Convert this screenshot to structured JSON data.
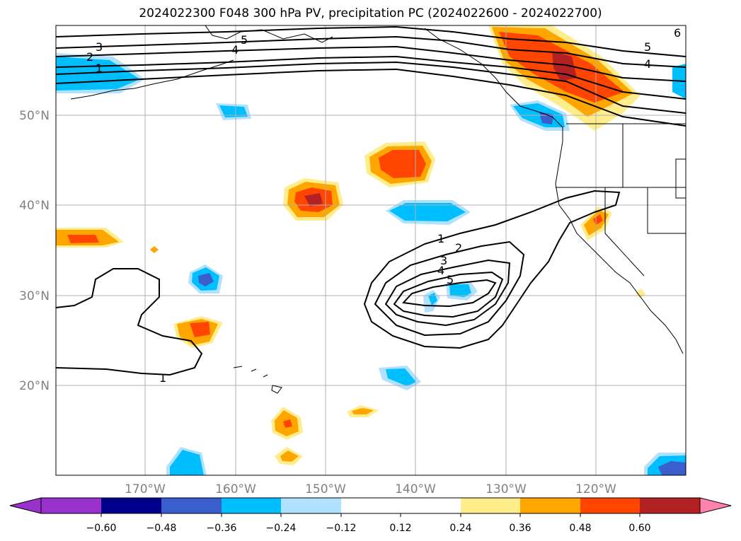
{
  "title": "2024022300 F048 300 hPa PV, precipitation PC (2024022600 - 2024022700)",
  "map": {
    "lat_labels": [
      "50°N",
      "40°N",
      "30°N",
      "20°N"
    ],
    "lon_labels": [
      "170°W",
      "160°W",
      "150°W",
      "140°W",
      "130°W",
      "120°W"
    ],
    "contour_labels": [
      "1",
      "2",
      "3",
      "4",
      "5",
      "6"
    ]
  },
  "colorbar": {
    "labels": [
      "−0.60",
      "−0.48",
      "−0.36",
      "−0.24",
      "−0.12",
      "0.12",
      "0.24",
      "0.36",
      "0.48",
      "0.60"
    ],
    "colors": [
      "#9932cc",
      "#00008b",
      "#3a5fcd",
      "#00bfff",
      "#b0e2ff",
      "#ffffff",
      "#ffec8b",
      "#ffa500",
      "#ff4500",
      "#b22222",
      "#ff82ab"
    ]
  }
}
